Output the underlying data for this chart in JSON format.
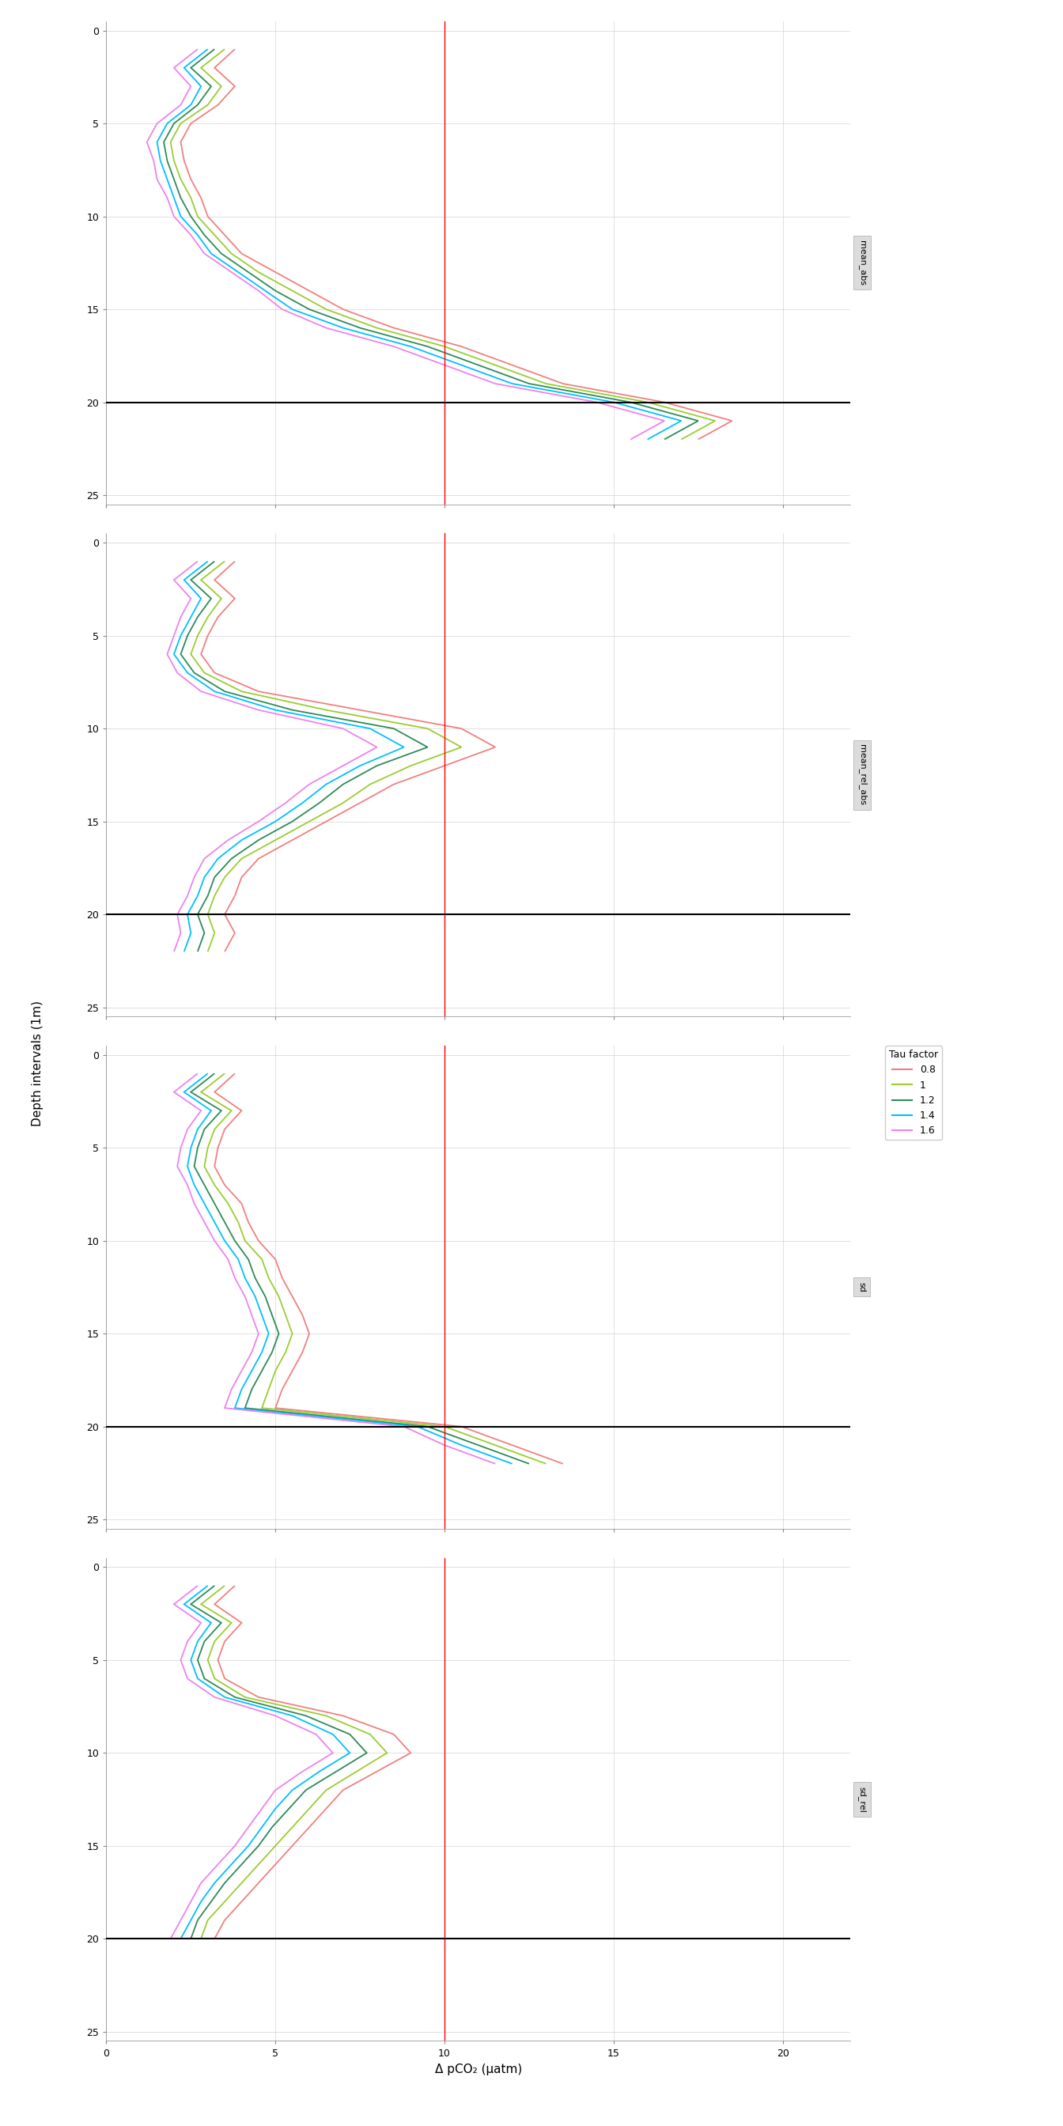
{
  "tau_keys": [
    "0.8",
    "1.0",
    "1.2",
    "1.4",
    "1.6"
  ],
  "tau_labels": [
    "0.8",
    "1",
    "1.2",
    "1.4",
    "1.6"
  ],
  "colors": {
    "0.8": "#F08080",
    "1.0": "#9ACD32",
    "1.2": "#2E8B57",
    "1.4": "#00BFFF",
    "1.6": "#EE82EE"
  },
  "panel_labels": [
    "mean_abs",
    "mean_rel_abs",
    "sd",
    "sd_rel"
  ],
  "panel_strip_labels": [
    "mean_abs",
    "mean_rel_abs",
    "sd",
    "sd_rel"
  ],
  "xlim": [
    0,
    22
  ],
  "ylim_max": 25,
  "vline_x": 10,
  "hline_y": 20,
  "xticks": [
    0,
    5,
    10,
    15,
    20
  ],
  "yticks": [
    0,
    5,
    10,
    15,
    20,
    25
  ],
  "depth": [
    0,
    1,
    2,
    3,
    4,
    5,
    6,
    7,
    8,
    9,
    10,
    11,
    12,
    13,
    14,
    15,
    16,
    17,
    18,
    19,
    20,
    21,
    22,
    23,
    24,
    25
  ],
  "mean_abs": {
    "0.8": [
      null,
      3.8,
      3.2,
      3.8,
      3.3,
      2.5,
      2.2,
      2.3,
      2.5,
      2.8,
      3.0,
      3.5,
      4.0,
      5.0,
      6.0,
      7.0,
      8.5,
      10.5,
      12.0,
      13.5,
      16.5,
      18.5,
      17.5,
      null,
      null,
      null
    ],
    "1.0": [
      null,
      3.5,
      2.8,
      3.4,
      3.0,
      2.2,
      1.9,
      2.0,
      2.2,
      2.5,
      2.7,
      3.2,
      3.7,
      4.5,
      5.5,
      6.5,
      8.0,
      10.0,
      11.5,
      13.0,
      16.0,
      18.0,
      17.0,
      null,
      null,
      null
    ],
    "1.2": [
      null,
      3.2,
      2.5,
      3.1,
      2.7,
      2.0,
      1.7,
      1.8,
      2.0,
      2.2,
      2.5,
      2.9,
      3.4,
      4.2,
      5.0,
      6.0,
      7.5,
      9.5,
      11.0,
      12.5,
      15.5,
      17.5,
      16.5,
      null,
      null,
      null
    ],
    "1.4": [
      null,
      3.0,
      2.3,
      2.8,
      2.5,
      1.8,
      1.5,
      1.6,
      1.8,
      2.0,
      2.2,
      2.7,
      3.1,
      3.9,
      4.7,
      5.5,
      7.0,
      9.0,
      10.5,
      12.0,
      15.0,
      17.0,
      16.0,
      null,
      null,
      null
    ],
    "1.6": [
      null,
      2.7,
      2.0,
      2.5,
      2.2,
      1.5,
      1.2,
      1.4,
      1.5,
      1.8,
      2.0,
      2.5,
      2.9,
      3.7,
      4.5,
      5.2,
      6.5,
      8.5,
      10.0,
      11.5,
      14.5,
      16.5,
      15.5,
      null,
      null,
      null
    ]
  },
  "mean_rel_abs": {
    "0.8": [
      null,
      3.8,
      3.2,
      3.8,
      3.3,
      3.0,
      2.8,
      3.2,
      4.5,
      7.5,
      10.5,
      11.5,
      10.0,
      8.5,
      7.5,
      6.5,
      5.5,
      4.5,
      4.0,
      3.8,
      3.5,
      3.8,
      3.5,
      null,
      null,
      null
    ],
    "1.0": [
      null,
      3.5,
      2.8,
      3.4,
      3.0,
      2.7,
      2.5,
      2.9,
      4.0,
      6.5,
      9.5,
      10.5,
      9.0,
      7.8,
      7.0,
      6.0,
      5.0,
      4.0,
      3.5,
      3.2,
      3.0,
      3.2,
      3.0,
      null,
      null,
      null
    ],
    "1.2": [
      null,
      3.2,
      2.5,
      3.1,
      2.7,
      2.4,
      2.2,
      2.6,
      3.5,
      5.5,
      8.5,
      9.5,
      8.0,
      7.0,
      6.3,
      5.5,
      4.5,
      3.7,
      3.2,
      3.0,
      2.7,
      2.9,
      2.7,
      null,
      null,
      null
    ],
    "1.4": [
      null,
      3.0,
      2.3,
      2.8,
      2.5,
      2.2,
      2.0,
      2.4,
      3.2,
      5.0,
      7.8,
      8.8,
      7.5,
      6.5,
      5.8,
      5.0,
      4.0,
      3.3,
      2.9,
      2.7,
      2.4,
      2.5,
      2.3,
      null,
      null,
      null
    ],
    "1.6": [
      null,
      2.7,
      2.0,
      2.5,
      2.2,
      2.0,
      1.8,
      2.1,
      2.8,
      4.5,
      7.0,
      8.0,
      7.0,
      6.0,
      5.3,
      4.5,
      3.6,
      2.9,
      2.6,
      2.4,
      2.1,
      2.2,
      2.0,
      null,
      null,
      null
    ]
  },
  "sd": {
    "0.8": [
      null,
      3.8,
      3.2,
      4.0,
      3.5,
      3.3,
      3.2,
      3.5,
      4.0,
      4.2,
      4.5,
      5.0,
      5.2,
      5.5,
      5.8,
      6.0,
      5.8,
      5.5,
      5.2,
      5.0,
      10.5,
      12.0,
      13.5,
      null,
      null,
      null
    ],
    "1.0": [
      null,
      3.5,
      2.8,
      3.7,
      3.2,
      3.0,
      2.9,
      3.2,
      3.6,
      3.9,
      4.1,
      4.6,
      4.8,
      5.1,
      5.3,
      5.5,
      5.3,
      5.0,
      4.8,
      4.6,
      10.0,
      11.5,
      13.0,
      null,
      null,
      null
    ],
    "1.2": [
      null,
      3.2,
      2.5,
      3.4,
      2.9,
      2.7,
      2.6,
      2.9,
      3.2,
      3.5,
      3.8,
      4.2,
      4.4,
      4.7,
      4.9,
      5.1,
      4.9,
      4.6,
      4.3,
      4.1,
      9.5,
      11.0,
      12.5,
      null,
      null,
      null
    ],
    "1.4": [
      null,
      3.0,
      2.3,
      3.1,
      2.7,
      2.5,
      2.4,
      2.6,
      2.9,
      3.2,
      3.5,
      3.9,
      4.1,
      4.4,
      4.6,
      4.8,
      4.6,
      4.3,
      4.0,
      3.8,
      9.2,
      10.5,
      12.0,
      null,
      null,
      null
    ],
    "1.6": [
      null,
      2.7,
      2.0,
      2.8,
      2.4,
      2.2,
      2.1,
      2.4,
      2.6,
      2.9,
      3.2,
      3.6,
      3.8,
      4.1,
      4.3,
      4.5,
      4.3,
      4.0,
      3.7,
      3.5,
      8.8,
      10.0,
      11.5,
      null,
      null,
      null
    ]
  },
  "sd_rel": {
    "0.8": [
      null,
      3.8,
      3.2,
      4.0,
      3.5,
      3.3,
      3.5,
      4.5,
      7.0,
      8.5,
      9.0,
      8.0,
      7.0,
      6.5,
      6.0,
      5.5,
      5.0,
      4.5,
      4.0,
      3.5,
      3.2,
      null,
      null,
      null,
      null,
      null
    ],
    "1.0": [
      null,
      3.5,
      2.8,
      3.7,
      3.2,
      3.0,
      3.2,
      4.1,
      6.5,
      7.8,
      8.3,
      7.4,
      6.5,
      6.0,
      5.5,
      5.0,
      4.5,
      4.0,
      3.5,
      3.0,
      2.8,
      null,
      null,
      null,
      null,
      null
    ],
    "1.2": [
      null,
      3.2,
      2.5,
      3.4,
      2.9,
      2.7,
      2.9,
      3.8,
      5.9,
      7.2,
      7.7,
      6.8,
      5.9,
      5.4,
      4.9,
      4.5,
      4.0,
      3.5,
      3.1,
      2.7,
      2.5,
      null,
      null,
      null,
      null,
      null
    ],
    "1.4": [
      null,
      3.0,
      2.3,
      3.1,
      2.7,
      2.5,
      2.7,
      3.5,
      5.5,
      6.7,
      7.2,
      6.3,
      5.5,
      5.0,
      4.6,
      4.2,
      3.7,
      3.2,
      2.8,
      2.5,
      2.2,
      null,
      null,
      null,
      null,
      null
    ],
    "1.6": [
      null,
      2.7,
      2.0,
      2.8,
      2.4,
      2.2,
      2.4,
      3.2,
      5.0,
      6.2,
      6.7,
      5.8,
      5.0,
      4.6,
      4.2,
      3.8,
      3.3,
      2.8,
      2.5,
      2.2,
      1.9,
      null,
      null,
      null,
      null,
      null
    ]
  }
}
